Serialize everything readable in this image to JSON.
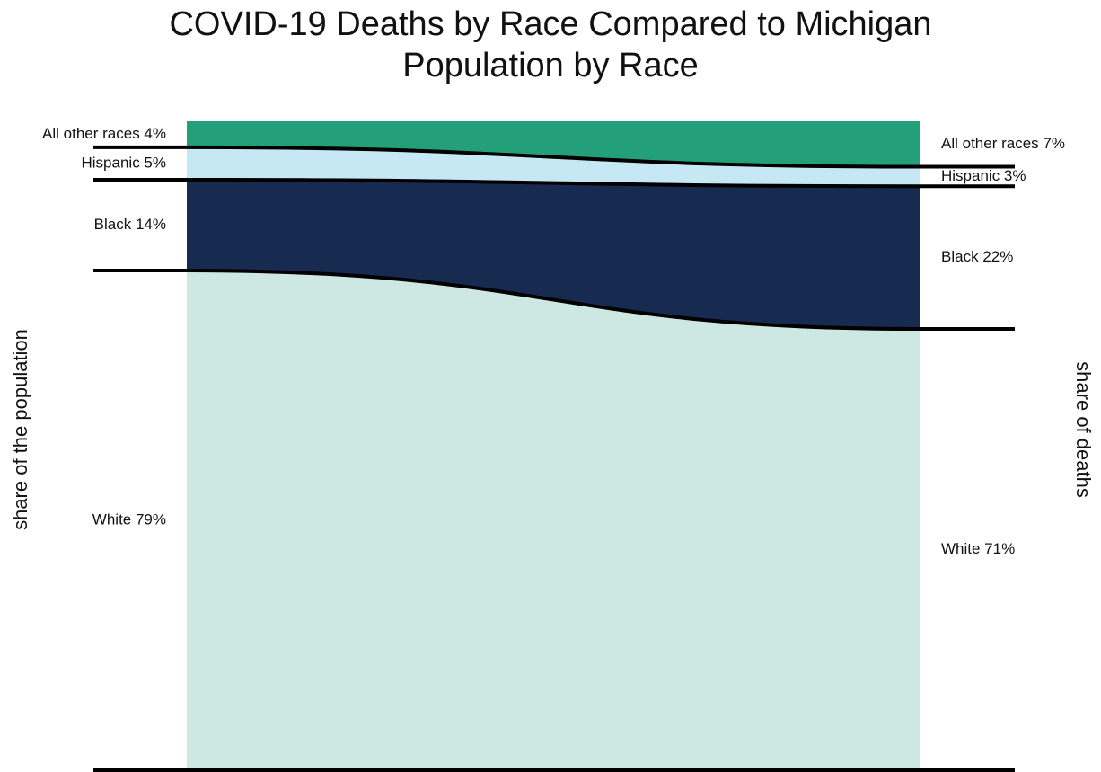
{
  "chart_data": {
    "type": "area",
    "title": "COVID-19 Deths by Race Compared to Michigan Population by Race",
    "title_lines": [
      "COVID-19 Deaths by Race Compared to Michigan",
      "Population by Race"
    ],
    "left_axis_label": "share of the population",
    "right_axis_label": "share of deaths",
    "series": [
      {
        "name": "All other races",
        "left_value": 4,
        "right_value": 7,
        "color": "#23a07a",
        "left_label": "All other races 4%",
        "right_label": "All other races 7%"
      },
      {
        "name": "Hispanic",
        "left_value": 5,
        "right_value": 3,
        "color": "#c6e8f5",
        "left_label": "Hispanic 5%",
        "right_label": "Hispanic 3%"
      },
      {
        "name": "Black",
        "left_value": 14,
        "right_value": 22,
        "color": "#172a50",
        "left_label": "Black 14%",
        "right_label": "Black 22%"
      },
      {
        "name": "White",
        "left_value": 79,
        "right_value": 71,
        "color": "#cde8e3",
        "left_label": "White 79%",
        "right_label": "White 71%"
      }
    ],
    "boundary_line_color": "#000000"
  }
}
